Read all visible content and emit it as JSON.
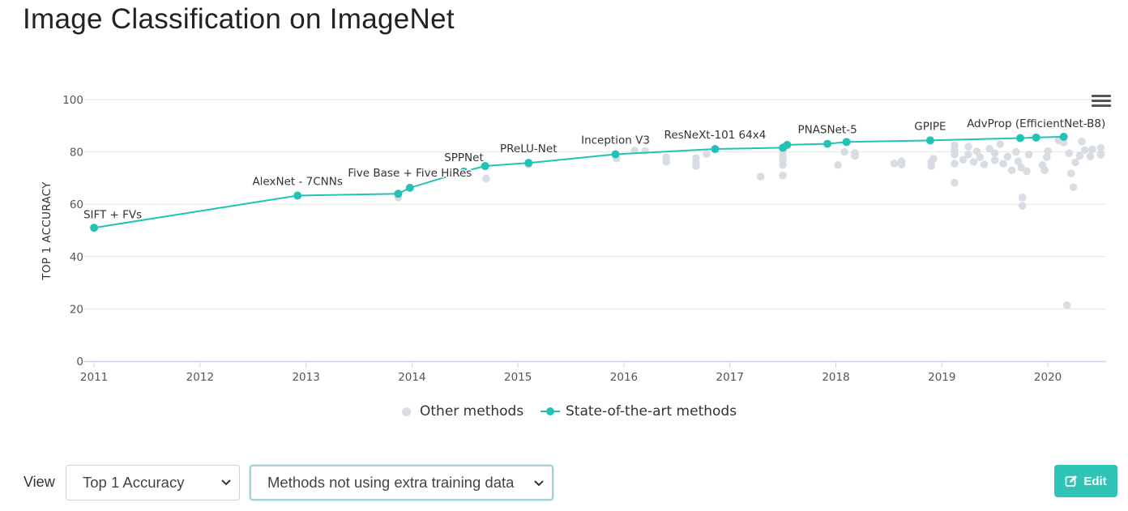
{
  "page": {
    "title": "Image Classification on ImageNet"
  },
  "colors": {
    "sota": "#21c4b4",
    "other": "#d7dde3",
    "grid": "#e6e6e6",
    "axis_line": "#ccd6eb",
    "edit_button": "#2ec4b6"
  },
  "icons": {
    "chart_menu": "hamburger-icon",
    "select_arrow": "chevron-down-icon",
    "edit": "edit-icon"
  },
  "chart_data": {
    "type": "scatter",
    "title": "",
    "xlabel": "",
    "ylabel": "TOP 1 ACCURACY",
    "xlim": [
      2010.9,
      2020.55
    ],
    "ylim": [
      0,
      100
    ],
    "x_ticks": [
      "2011",
      "2012",
      "2013",
      "2014",
      "2015",
      "2016",
      "2017",
      "2018",
      "2019",
      "2020"
    ],
    "y_ticks": [
      "0",
      "20",
      "40",
      "60",
      "80",
      "100"
    ],
    "grid": true,
    "legend_position": "bottom-center",
    "legend": [
      "Other methods",
      "State-of-the-art methods"
    ],
    "series": [
      {
        "name": "State-of-the-art methods",
        "style": "line+markers",
        "points": [
          {
            "x": 2011.0,
            "y": 51.0,
            "label": "SIFT + FVs"
          },
          {
            "x": 2012.92,
            "y": 63.3,
            "label": "AlexNet - 7CNNs"
          },
          {
            "x": 2013.87,
            "y": 64.0,
            "label": ""
          },
          {
            "x": 2013.98,
            "y": 66.3,
            "label": "Five Base + Five HiRes"
          },
          {
            "x": 2014.49,
            "y": 72.5,
            "label": "SPPNet"
          },
          {
            "x": 2014.69,
            "y": 74.6,
            "label": ""
          },
          {
            "x": 2015.1,
            "y": 75.8,
            "label": "PReLU-Net"
          },
          {
            "x": 2015.92,
            "y": 79.1,
            "label": "Inception V3"
          },
          {
            "x": 2016.86,
            "y": 81.1,
            "label": "ResNeXt-101 64x4"
          },
          {
            "x": 2017.5,
            "y": 81.6,
            "label": ""
          },
          {
            "x": 2017.54,
            "y": 82.7,
            "label": ""
          },
          {
            "x": 2017.92,
            "y": 83.1,
            "label": "PNASNet-5"
          },
          {
            "x": 2018.1,
            "y": 83.8,
            "label": ""
          },
          {
            "x": 2018.89,
            "y": 84.4,
            "label": "GPIPE"
          },
          {
            "x": 2019.74,
            "y": 85.3,
            "label": ""
          },
          {
            "x": 2019.89,
            "y": 85.5,
            "label": "AdvProp (EfficientNet-B8)"
          },
          {
            "x": 2020.15,
            "y": 85.8,
            "label": ""
          }
        ]
      },
      {
        "name": "Other methods",
        "style": "markers",
        "points": [
          [
            2013.87,
            62.6
          ],
          [
            2014.7,
            69.8
          ],
          [
            2015.1,
            75.2
          ],
          [
            2015.93,
            77.5
          ],
          [
            2016.1,
            80.5
          ],
          [
            2016.2,
            80.4
          ],
          [
            2016.4,
            76.2
          ],
          [
            2016.4,
            78.0
          ],
          [
            2016.68,
            74.6
          ],
          [
            2016.68,
            76.0
          ],
          [
            2016.68,
            77.6
          ],
          [
            2016.78,
            79.2
          ],
          [
            2017.29,
            70.6
          ],
          [
            2017.5,
            71.0
          ],
          [
            2017.5,
            75.0
          ],
          [
            2017.5,
            76.8
          ],
          [
            2017.5,
            78.4
          ],
          [
            2017.5,
            80.1
          ],
          [
            2018.02,
            75.0
          ],
          [
            2018.08,
            80.0
          ],
          [
            2018.18,
            78.5
          ],
          [
            2018.18,
            79.6
          ],
          [
            2018.55,
            75.6
          ],
          [
            2018.62,
            76.4
          ],
          [
            2018.62,
            75.2
          ],
          [
            2018.9,
            74.6
          ],
          [
            2018.9,
            76.1
          ],
          [
            2018.92,
            77.4
          ],
          [
            2019.12,
            68.2
          ],
          [
            2019.12,
            75.5
          ],
          [
            2019.12,
            79.0
          ],
          [
            2019.12,
            80.8
          ],
          [
            2019.12,
            82.5
          ],
          [
            2019.2,
            77.0
          ],
          [
            2019.25,
            79.0
          ],
          [
            2019.25,
            82.0
          ],
          [
            2019.3,
            76.2
          ],
          [
            2019.33,
            80.2
          ],
          [
            2019.36,
            78.0
          ],
          [
            2019.4,
            75.2
          ],
          [
            2019.45,
            81.2
          ],
          [
            2019.5,
            76.8
          ],
          [
            2019.5,
            79.5
          ],
          [
            2019.55,
            83.0
          ],
          [
            2019.58,
            75.5
          ],
          [
            2019.62,
            78.2
          ],
          [
            2019.66,
            73.0
          ],
          [
            2019.7,
            80.0
          ],
          [
            2019.72,
            76.4
          ],
          [
            2019.75,
            74.0
          ],
          [
            2019.76,
            62.6
          ],
          [
            2019.76,
            59.4
          ],
          [
            2019.8,
            72.6
          ],
          [
            2019.82,
            79.0
          ],
          [
            2019.95,
            75.0
          ],
          [
            2019.97,
            73.0
          ],
          [
            2019.99,
            78.0
          ],
          [
            2020.0,
            80.3
          ],
          [
            2020.1,
            84.4
          ],
          [
            2020.15,
            83.6
          ],
          [
            2020.2,
            79.5
          ],
          [
            2020.22,
            71.8
          ],
          [
            2020.24,
            66.5
          ],
          [
            2020.26,
            76.0
          ],
          [
            2020.3,
            78.5
          ],
          [
            2020.32,
            84.0
          ],
          [
            2020.35,
            80.7
          ],
          [
            2020.4,
            78.3
          ],
          [
            2020.42,
            81.0
          ],
          [
            2020.5,
            79.0
          ],
          [
            2020.5,
            81.5
          ],
          [
            2020.18,
            21.4
          ]
        ]
      }
    ]
  },
  "controls": {
    "view_label": "View",
    "metric_select": "Top 1 Accuracy",
    "filter_select": "Methods not using extra training data",
    "edit_label": "Edit"
  }
}
